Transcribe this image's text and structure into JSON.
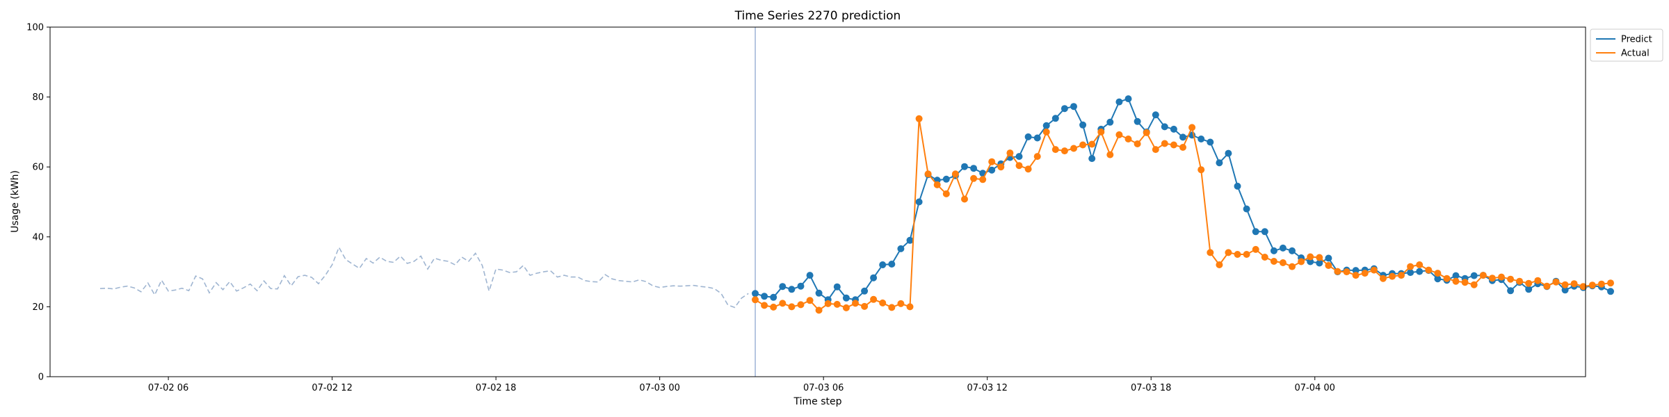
{
  "chart_data": {
    "type": "line",
    "title": "Time Series 2270 prediction",
    "xlabel": "Time step",
    "ylabel": "Usage (kWh)",
    "ylim": [
      0,
      100
    ],
    "yticks": [
      0,
      20,
      40,
      60,
      80,
      100
    ],
    "xlim": [
      "07-02 01:40",
      "07-04 09:55"
    ],
    "xticks": [
      "07-02 06",
      "07-02 12",
      "07-02 18",
      "07-03 00",
      "07-03 06",
      "07-03 12",
      "07-03 18",
      "07-04 00"
    ],
    "grid": false,
    "legend_position": "outside top-right",
    "forecast_start": "07-03 03:30",
    "history": {
      "style": "dashed",
      "color": "#9fb5d1",
      "start": "07-02 03:30",
      "step_minutes": 15,
      "values": [
        25.2,
        25.3,
        25.1,
        25.6,
        25.9,
        25.4,
        24.3,
        26.8,
        23.4,
        27.6,
        24.5,
        24.8,
        25.3,
        24.6,
        28.8,
        28.0,
        24.0,
        26.9,
        24.9,
        27.2,
        24.5,
        25.4,
        26.5,
        24.6,
        27.4,
        25.2,
        25.1,
        28.9,
        26.0,
        28.6,
        29.0,
        28.4,
        26.6,
        29.0,
        32.0,
        37.0,
        33.5,
        32.2,
        31.0,
        33.8,
        32.5,
        34.2,
        33.0,
        32.7,
        34.5,
        32.4,
        33.0,
        34.5,
        30.8,
        33.9,
        33.3,
        33.0,
        32.0,
        34.2,
        33.0,
        35.3,
        31.8,
        24.5,
        30.8,
        30.5,
        29.8,
        30.0,
        31.8,
        29.0,
        29.6,
        30.0,
        30.3,
        28.5,
        29.0,
        28.5,
        28.5,
        27.5,
        27.2,
        27.1,
        29.2,
        28.0,
        27.5,
        27.3,
        27.1,
        27.7,
        27.2,
        26.0,
        25.5,
        25.8,
        26.0,
        25.9,
        26.0,
        26.1,
        25.8,
        25.6,
        25.2,
        23.8,
        20.5,
        19.8,
        22.5,
        23.8
      ]
    },
    "series": [
      {
        "name": "Predict",
        "color": "#1f77b4",
        "start": "07-03 03:30",
        "step_minutes": 20,
        "values": [
          23.8,
          23.0,
          22.7,
          25.8,
          25.0,
          25.9,
          29.0,
          23.9,
          22.0,
          25.7,
          22.5,
          22.0,
          24.5,
          28.3,
          32.0,
          32.2,
          36.6,
          39.0,
          50.0,
          57.8,
          56.2,
          56.5,
          57.5,
          60.1,
          59.6,
          58.2,
          59.1,
          60.9,
          62.7,
          63.0,
          68.6,
          68.3,
          71.8,
          73.9,
          76.7,
          77.3,
          72.0,
          62.4,
          70.8,
          72.8,
          78.6,
          79.5,
          73.0,
          70.0,
          74.9,
          71.5,
          70.8,
          68.5,
          69.1,
          68.0,
          67.1,
          61.2,
          63.9,
          54.5,
          48.0,
          41.5,
          41.5,
          36.0,
          36.8,
          36.0,
          34.0,
          32.9,
          32.5,
          33.9,
          30.0,
          30.5,
          30.4,
          30.5,
          30.9,
          29.0,
          29.5,
          29.5,
          29.8,
          30.1,
          30.4,
          28.0,
          27.6,
          28.9,
          28.1,
          28.9,
          29.0,
          27.5,
          27.8,
          24.6,
          27.0,
          25.0,
          26.6,
          25.8,
          27.3,
          24.8,
          25.9,
          25.5,
          26.0,
          25.7,
          24.4
        ]
      },
      {
        "name": "Actual",
        "color": "#ff7f0e",
        "start": "07-03 03:30",
        "step_minutes": 20,
        "values": [
          22.0,
          20.4,
          19.9,
          21.0,
          20.0,
          20.6,
          21.8,
          19.0,
          20.9,
          20.7,
          19.7,
          21.0,
          20.1,
          22.1,
          21.1,
          19.8,
          20.9,
          20.0,
          73.8,
          58.0,
          54.9,
          52.3,
          58.0,
          50.8,
          56.7,
          56.4,
          61.5,
          60.0,
          64.0,
          60.4,
          59.4,
          63.0,
          70.0,
          65.0,
          64.6,
          65.3,
          66.3,
          66.5,
          70.0,
          63.5,
          69.2,
          68.0,
          66.6,
          69.8,
          65.0,
          66.7,
          66.3,
          65.6,
          71.3,
          59.2,
          35.5,
          32.0,
          35.5,
          35.0,
          35.0,
          36.4,
          34.2,
          33.0,
          32.6,
          31.5,
          32.9,
          34.3,
          34.1,
          31.8,
          30.1,
          30.0,
          29.0,
          29.6,
          30.5,
          28.1,
          28.7,
          29.0,
          31.5,
          32.0,
          30.5,
          29.6,
          28.1,
          27.3,
          27.0,
          26.3,
          29.0,
          28.2,
          28.5,
          27.9,
          27.3,
          26.7,
          27.5,
          25.9,
          27.1,
          26.3,
          26.6,
          25.8,
          26.2,
          26.5,
          26.8
        ]
      }
    ]
  }
}
